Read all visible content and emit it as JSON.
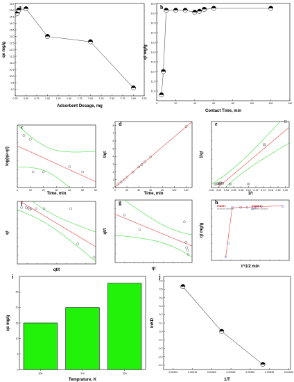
{
  "chart_data": [
    {
      "panel": "a",
      "type": "line",
      "xlabel": "Adsorbent Dosage, mg",
      "ylabel": "qe mg/g",
      "xlim": [
        0.25,
        3.25
      ],
      "ylim": [
        8.5,
        15.5
      ],
      "xticks": [
        "0.25",
        "0.50",
        "0.75",
        "1.00",
        "1.25",
        "1.50",
        "1.75",
        "2.00",
        "2.25",
        "2.50",
        "2.75",
        "3.00",
        "3.25"
      ],
      "yticks": [
        "9.0",
        "9.5",
        "10.0",
        "10.5",
        "11.0",
        "11.5",
        "12.0",
        "12.5",
        "13.0",
        "13.5",
        "14.0",
        "14.5",
        "15.0",
        "15.5"
      ],
      "x": [
        0.3,
        0.33,
        0.5,
        1.0,
        2.0,
        3.0
      ],
      "y": [
        14.75,
        15.0,
        15.1,
        13.0,
        12.6,
        9.1
      ]
    },
    {
      "panel": "b",
      "type": "line",
      "xlabel": "Contact Time, min",
      "ylabel": "qt mg/g",
      "xlim": [
        0,
        140
      ],
      "ylim": [
        10.5,
        15.5
      ],
      "xticks": [
        "0",
        "20",
        "40",
        "60",
        "80",
        "100",
        "120",
        "140"
      ],
      "yticks": [
        "11.0",
        "11.5",
        "12.0",
        "12.5",
        "13.0",
        "13.5",
        "14.0",
        "14.5",
        "15.0",
        "15.5"
      ],
      "x": [
        5,
        7,
        10,
        20,
        30,
        40,
        45,
        50,
        60,
        120
      ],
      "y": [
        10.8,
        12.0,
        15.15,
        15.15,
        15.15,
        15.05,
        15.1,
        15.2,
        15.25,
        15.25
      ]
    },
    {
      "panel": "c",
      "type": "scatter",
      "xlabel": "Time, min",
      "ylabel": "log(qe-qt)",
      "xlim": [
        0,
        60
      ],
      "ylim": [
        -1.7,
        0.7
      ],
      "xticks": [
        "0",
        "10",
        "20",
        "30",
        "40",
        "50",
        "60"
      ],
      "yticks": [],
      "x": [
        5,
        10,
        12,
        20,
        40,
        50
      ],
      "y": [
        0.3,
        0.15,
        -1.1,
        -1.1,
        -0.9,
        -1.1
      ]
    },
    {
      "panel": "d",
      "type": "scatter",
      "xlabel": "Time, min",
      "ylabel": "t/qt",
      "xlim": [
        0,
        130
      ],
      "ylim": [
        0,
        8.5
      ],
      "xticks": [
        "0",
        "20",
        "40",
        "60",
        "80",
        "100",
        "120"
      ],
      "yticks": [
        "0",
        "1",
        "2",
        "3",
        "4",
        "5",
        "6",
        "7",
        "8"
      ],
      "x": [
        5,
        10,
        15,
        20,
        30,
        40,
        45,
        50,
        60,
        120
      ],
      "y": [
        0.45,
        0.7,
        1.0,
        1.35,
        2.0,
        2.65,
        2.95,
        3.3,
        3.95,
        7.85
      ]
    },
    {
      "panel": "e",
      "type": "scatter",
      "xlabel": "1/t",
      "ylabel": "1/qt",
      "xlim": [
        0,
        0.21
      ],
      "ylim": [
        0.0645,
        0.093
      ],
      "xticks": [
        "0.00",
        "0.02",
        "0.04",
        "0.06",
        "0.08",
        "0.10",
        "0.12",
        "0.14",
        "0.16",
        "0.18",
        "0.20"
      ],
      "yticks": [],
      "x": [
        0.01,
        0.017,
        0.02,
        0.022,
        0.025,
        0.03,
        0.05,
        0.1,
        0.143,
        0.2
      ],
      "y": [
        0.066,
        0.0662,
        0.0662,
        0.066,
        0.0665,
        0.0664,
        0.066,
        0.066,
        0.083,
        0.093
      ]
    },
    {
      "panel": "f",
      "type": "scatter",
      "xlabel": "qt/t",
      "ylabel": "qt",
      "xlim": [
        0,
        2.2
      ],
      "ylim": [
        10.2,
        15.8
      ],
      "xticks": [],
      "yticks": [],
      "x": [
        0.12,
        0.25,
        0.3,
        0.35,
        0.38,
        0.52,
        0.75,
        1.5,
        1.7,
        2.15
      ],
      "y": [
        15.25,
        15.25,
        15.2,
        15.1,
        15.15,
        15.15,
        15.15,
        15.15,
        12.0,
        10.8
      ]
    },
    {
      "panel": "g",
      "type": "scatter",
      "xlabel": "qt",
      "ylabel": "qt/t",
      "xlim": [
        10.5,
        15.5
      ],
      "ylim": [
        0,
        2.3
      ],
      "xticks": [],
      "yticks": [],
      "x": [
        11.1,
        12.1,
        15.0,
        15.1,
        15.15,
        15.2,
        15.25
      ],
      "y": [
        1.75,
        1.2,
        1.5,
        0.75,
        0.55,
        0.45,
        0.3
      ]
    },
    {
      "panel": "h",
      "type": "scatter",
      "xlabel": "t^1/2 min",
      "ylabel": "qt mg/g",
      "xlim": [
        0,
        12
      ],
      "ylim": [
        10.5,
        15.8
      ],
      "xticks": [],
      "yticks": [],
      "x": [
        2.2,
        2.6,
        3.2,
        4.5,
        5.5,
        6.3,
        6.7,
        7.1,
        7.7,
        11.0
      ],
      "y": [
        10.8,
        12.0,
        15.15,
        15.15,
        15.15,
        15.05,
        15.1,
        15.2,
        15.25,
        15.25
      ],
      "annotations": [
        {
          "text": "STAGE I",
          "sub": "Intraparticle Adsorption"
        },
        {
          "text": "STAGE II",
          "sub": "Equilibrium Adsorption"
        }
      ]
    },
    {
      "panel": "i",
      "type": "bar",
      "xlabel": "Temprature, K",
      "ylabel": "qe mg/g",
      "categories": [
        "300",
        "310",
        "320"
      ],
      "values": [
        15,
        20,
        27.8
      ],
      "ylim": [
        0,
        30
      ],
      "yticks": [
        "0",
        "5",
        "10",
        "15",
        "20",
        "25"
      ],
      "bar_color": "#22f20a"
    },
    {
      "panel": "j",
      "type": "line",
      "xlabel": "1/T",
      "ylabel": "lnKD",
      "xlim": [
        0.003075,
        0.003405
      ],
      "ylim": [
        -0.45,
        0.65
      ],
      "xticks": [
        "0.00310",
        "0.00315",
        "0.00320",
        "0.00325",
        "0.00330",
        "0.00335",
        "0.00340"
      ],
      "yticks": [
        "-0.4",
        "-0.3",
        "-0.2",
        "-0.1",
        "0.0",
        "0.1",
        "0.2",
        "0.3",
        "0.4",
        "0.5",
        "0.6"
      ],
      "x": [
        0.003125,
        0.003226,
        0.003333
      ],
      "y": [
        0.53,
        0.0,
        -0.39
      ]
    }
  ]
}
